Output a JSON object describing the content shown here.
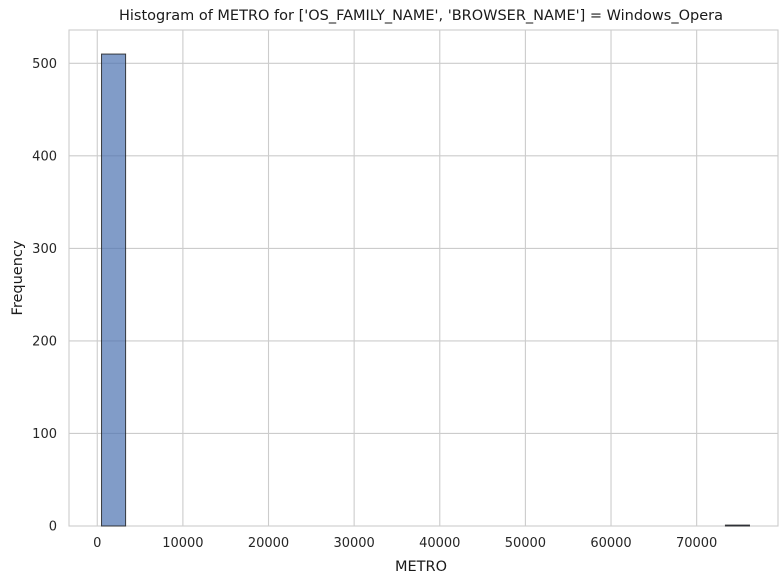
{
  "chart_data": {
    "type": "bar",
    "title": "Histogram of METRO for ['OS_FAMILY_NAME', 'BROWSER_NAME'] = Windows_Opera",
    "xlabel": "METRO",
    "ylabel": "Frequency",
    "xlim": [
      -3300,
      79500
    ],
    "ylim": [
      0,
      536
    ],
    "xticks": [
      0,
      10000,
      20000,
      30000,
      40000,
      50000,
      60000,
      70000
    ],
    "yticks": [
      0,
      100,
      200,
      300,
      400,
      500
    ],
    "grid": true,
    "legend": "none",
    "bar_color": "#4c72b0",
    "bins": [
      {
        "x0": 500,
        "x1": 3310,
        "count": 510
      },
      {
        "x0": 73360,
        "x1": 76170,
        "count": 1
      }
    ]
  }
}
